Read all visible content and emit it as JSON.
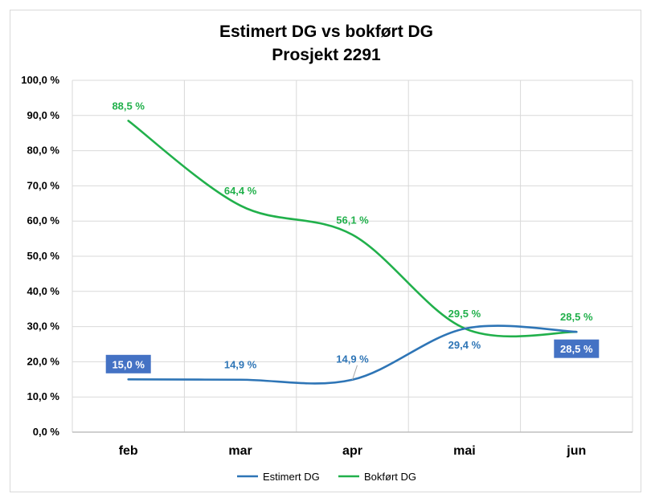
{
  "chart_data": {
    "type": "line",
    "title_lines": [
      "Estimert DG vs bokført DG",
      "Prosjekt 2291"
    ],
    "categories": [
      "feb",
      "mar",
      "apr",
      "mai",
      "jun"
    ],
    "y_ticks": [
      "0,0 %",
      "10,0 %",
      "20,0 %",
      "30,0 %",
      "40,0 %",
      "50,0 %",
      "60,0 %",
      "70,0 %",
      "80,0 %",
      "90,0 %",
      "100,0 %"
    ],
    "ylim": [
      0,
      100
    ],
    "grid": true,
    "legend_position": "bottom",
    "series": [
      {
        "name": "Estimert DG",
        "color": "#2e75b6",
        "values": [
          15.0,
          14.9,
          14.9,
          29.4,
          28.5
        ],
        "labels": [
          "15,0 %",
          "14,9 %",
          "14,9 %",
          "29,4 %",
          "28,5 %"
        ],
        "boxed_labels": [
          true,
          false,
          false,
          false,
          true
        ]
      },
      {
        "name": "Bokført DG",
        "color": "#21b04b",
        "values": [
          88.5,
          64.4,
          56.1,
          29.5,
          28.5
        ],
        "labels": [
          "88,5 %",
          "64,4 %",
          "56,1 %",
          "29,5 %",
          "28,5 %"
        ],
        "boxed_labels": [
          false,
          false,
          false,
          false,
          false
        ]
      }
    ]
  }
}
